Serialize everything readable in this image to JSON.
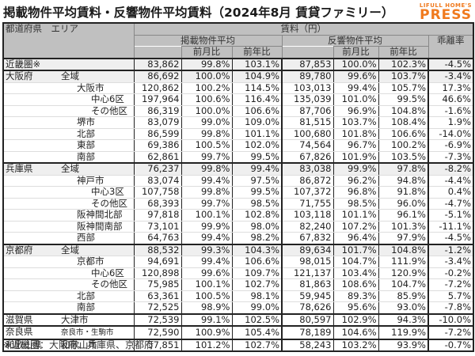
{
  "title": "掲載物件平均賃料・反響物件平均賃料（2024年8月 賃貸ファミリー）",
  "logo": {
    "line1": "LIFULL HOME'S",
    "line2": "PRESS",
    "color": "#f07a1e"
  },
  "header": {
    "area_col": "都道府県　エリア",
    "rent_group": "賃料（円）",
    "listed_group": "掲載物件平均",
    "response_group": "反響物件平均",
    "mom": "前月比",
    "yoy": "前年比",
    "divergence": "乖離率"
  },
  "rows": [
    {
      "pref": "近畿圏※",
      "area": "",
      "indent": 0,
      "listed": "83,862",
      "listed_mom": "99.8%",
      "listed_yoy": "103.1%",
      "resp": "87,853",
      "resp_mom": "100.0%",
      "resp_yoy": "102.3%",
      "div": "-4.5%"
    },
    {
      "pref": "大阪府",
      "area": "全域",
      "indent": 1,
      "listed": "86,692",
      "listed_mom": "100.0%",
      "listed_yoy": "104.9%",
      "resp": "89,780",
      "resp_mom": "99.6%",
      "resp_yoy": "103.7%",
      "div": "-3.4%"
    },
    {
      "pref": "",
      "area": "大阪市",
      "indent": 2,
      "listed": "120,862",
      "listed_mom": "100.2%",
      "listed_yoy": "114.5%",
      "resp": "103,013",
      "resp_mom": "99.4%",
      "resp_yoy": "105.7%",
      "div": "17.3%"
    },
    {
      "pref": "",
      "area": "中心6区",
      "indent": 3,
      "listed": "197,964",
      "listed_mom": "100.6%",
      "listed_yoy": "116.4%",
      "resp": "135,039",
      "resp_mom": "101.0%",
      "resp_yoy": "99.5%",
      "div": "46.6%"
    },
    {
      "pref": "",
      "area": "その他区",
      "indent": 3,
      "listed": "86,319",
      "listed_mom": "100.0%",
      "listed_yoy": "106.6%",
      "resp": "87,706",
      "resp_mom": "96.9%",
      "resp_yoy": "104.8%",
      "div": "-1.6%"
    },
    {
      "pref": "",
      "area": "堺市",
      "indent": 2,
      "listed": "83,079",
      "listed_mom": "99.0%",
      "listed_yoy": "109.0%",
      "resp": "81,515",
      "resp_mom": "103.7%",
      "resp_yoy": "108.4%",
      "div": "1.9%"
    },
    {
      "pref": "",
      "area": "北部",
      "indent": 2,
      "listed": "86,599",
      "listed_mom": "99.8%",
      "listed_yoy": "101.1%",
      "resp": "100,680",
      "resp_mom": "101.8%",
      "resp_yoy": "106.6%",
      "div": "-14.0%"
    },
    {
      "pref": "",
      "area": "東部",
      "indent": 2,
      "listed": "69,386",
      "listed_mom": "100.5%",
      "listed_yoy": "102.0%",
      "resp": "74,564",
      "resp_mom": "96.7%",
      "resp_yoy": "100.2%",
      "div": "-6.9%"
    },
    {
      "pref": "",
      "area": "南部",
      "indent": 2,
      "listed": "62,861",
      "listed_mom": "99.7%",
      "listed_yoy": "99.5%",
      "resp": "67,826",
      "resp_mom": "101.9%",
      "resp_yoy": "103.5%",
      "div": "-7.3%"
    },
    {
      "pref": "兵庫県",
      "area": "全域",
      "indent": 1,
      "listed": "76,237",
      "listed_mom": "99.8%",
      "listed_yoy": "99.4%",
      "resp": "83,038",
      "resp_mom": "99.9%",
      "resp_yoy": "97.8%",
      "div": "-8.2%"
    },
    {
      "pref": "",
      "area": "神戸市",
      "indent": 2,
      "listed": "83,074",
      "listed_mom": "99.4%",
      "listed_yoy": "97.5%",
      "resp": "86,872",
      "resp_mom": "96.2%",
      "resp_yoy": "94.8%",
      "div": "-4.4%"
    },
    {
      "pref": "",
      "area": "中心3区",
      "indent": 3,
      "listed": "107,758",
      "listed_mom": "99.8%",
      "listed_yoy": "99.5%",
      "resp": "107,372",
      "resp_mom": "96.8%",
      "resp_yoy": "91.8%",
      "div": "0.4%"
    },
    {
      "pref": "",
      "area": "その他区",
      "indent": 3,
      "listed": "68,393",
      "listed_mom": "99.7%",
      "listed_yoy": "98.5%",
      "resp": "71,755",
      "resp_mom": "98.5%",
      "resp_yoy": "96.0%",
      "div": "-4.7%"
    },
    {
      "pref": "",
      "area": "阪神間北部",
      "indent": 2,
      "listed": "97,818",
      "listed_mom": "100.1%",
      "listed_yoy": "102.8%",
      "resp": "103,118",
      "resp_mom": "101.1%",
      "resp_yoy": "96.1%",
      "div": "-5.1%"
    },
    {
      "pref": "",
      "area": "阪神間南部",
      "indent": 2,
      "listed": "73,101",
      "listed_mom": "99.9%",
      "listed_yoy": "98.0%",
      "resp": "82,240",
      "resp_mom": "107.2%",
      "resp_yoy": "101.3%",
      "div": "-11.1%"
    },
    {
      "pref": "",
      "area": "西部",
      "indent": 2,
      "listed": "64,763",
      "listed_mom": "99.4%",
      "listed_yoy": "98.2%",
      "resp": "67,832",
      "resp_mom": "96.4%",
      "resp_yoy": "97.9%",
      "div": "-4.5%"
    },
    {
      "pref": "京都府",
      "area": "全域",
      "indent": 1,
      "listed": "88,532",
      "listed_mom": "99.3%",
      "listed_yoy": "104.3%",
      "resp": "89,634",
      "resp_mom": "101.7%",
      "resp_yoy": "104.8%",
      "div": "-1.2%"
    },
    {
      "pref": "",
      "area": "京都市",
      "indent": 2,
      "listed": "94,691",
      "listed_mom": "99.4%",
      "listed_yoy": "106.6%",
      "resp": "98,015",
      "resp_mom": "104.7%",
      "resp_yoy": "111.9%",
      "div": "-3.4%"
    },
    {
      "pref": "",
      "area": "中心6区",
      "indent": 3,
      "listed": "120,898",
      "listed_mom": "99.6%",
      "listed_yoy": "109.7%",
      "resp": "121,137",
      "resp_mom": "103.4%",
      "resp_yoy": "120.9%",
      "div": "-0.2%"
    },
    {
      "pref": "",
      "area": "その他区",
      "indent": 3,
      "listed": "75,985",
      "listed_mom": "100.1%",
      "listed_yoy": "102.7%",
      "resp": "81,863",
      "resp_mom": "108.6%",
      "resp_yoy": "104.7%",
      "div": "-7.2%"
    },
    {
      "pref": "",
      "area": "北部",
      "indent": 2,
      "listed": "63,361",
      "listed_mom": "100.5%",
      "listed_yoy": "98.1%",
      "resp": "59,945",
      "resp_mom": "89.3%",
      "resp_yoy": "85.9%",
      "div": "5.7%"
    },
    {
      "pref": "",
      "area": "南部",
      "indent": 2,
      "listed": "72,525",
      "listed_mom": "98.9%",
      "listed_yoy": "99.0%",
      "resp": "78,626",
      "resp_mom": "95.6%",
      "resp_yoy": "93.0%",
      "div": "-7.8%"
    },
    {
      "pref": "滋賀県",
      "area": "大津市",
      "indent": 1,
      "listed": "72,539",
      "listed_mom": "99.1%",
      "listed_yoy": "102.5%",
      "resp": "80,597",
      "resp_mom": "102.9%",
      "resp_yoy": "94.3%",
      "div": "-10.0%"
    },
    {
      "pref": "奈良県",
      "area": "奈良市・生駒市",
      "indent": 1,
      "small": true,
      "listed": "72,590",
      "listed_mom": "100.9%",
      "listed_yoy": "105.4%",
      "resp": "78,189",
      "resp_mom": "104.6%",
      "resp_yoy": "119.9%",
      "div": "-7.2%"
    },
    {
      "pref": "和歌山県",
      "area": "和歌山市",
      "indent": 1,
      "listed": "57,851",
      "listed_mom": "101.2%",
      "listed_yoy": "102.7%",
      "resp": "58,243",
      "resp_mom": "103.2%",
      "resp_yoy": "93.9%",
      "div": "-0.7%"
    }
  ],
  "footnote": "※近畿圏：大阪府、兵庫県、京都府"
}
